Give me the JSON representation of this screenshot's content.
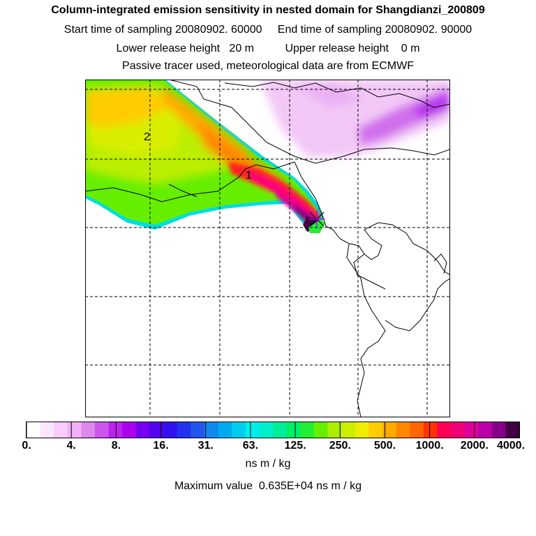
{
  "header": {
    "title": "Column-integrated emission sensitivity in nested domain for Shangdianzi_200809",
    "sampling_line": "Start time of sampling 20080902. 60000     End time of sampling 20080902. 90000",
    "release_line": "Lower release height   20 m          Upper release height    0 m",
    "tracer_line": "Passive tracer used, meteorological data are from ECMWF"
  },
  "map": {
    "contour_labels": [
      "2",
      "1"
    ],
    "release_marker": "release-site-marker"
  },
  "colorbar": {
    "colors": [
      "#ffffff",
      "#fde6ff",
      "#f8ccfb",
      "#f0b0f5",
      "#dd88ee",
      "#cc55ee",
      "#bb22ee",
      "#aa00ee",
      "#7700ee",
      "#5500ee",
      "#3311ee",
      "#2233ee",
      "#2255ee",
      "#1188ee",
      "#00aaee",
      "#00ccee",
      "#00eeee",
      "#00eecc",
      "#00ee99",
      "#00ee66",
      "#22ee33",
      "#66ee00",
      "#aaee00",
      "#ccee00",
      "#eeee00",
      "#ffcc00",
      "#ffaa00",
      "#ff8800",
      "#ff6600",
      "#ff3300",
      "#ff0055",
      "#ee0077",
      "#dd0099",
      "#bb00aa",
      "#880088",
      "#440044"
    ],
    "tick_labels": [
      "0.",
      "4.",
      "8.",
      "16.",
      "31.",
      "63.",
      "125.",
      "250.",
      "500.",
      "1000.",
      "2000.",
      "4000."
    ],
    "units": "ns m / kg",
    "max_value": "Maximum value  0.635E+04 ns m / kg"
  }
}
